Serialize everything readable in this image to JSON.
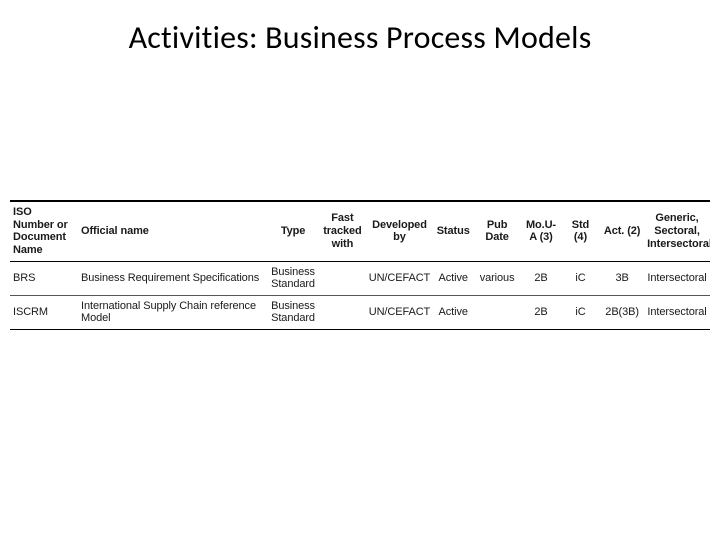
{
  "title": "Activities: Business Process Models",
  "table": {
    "columns": [
      {
        "key": "iso",
        "label": "ISO Number or Document Name",
        "class": "col-iso",
        "align": "left"
      },
      {
        "key": "name",
        "label": "Official name",
        "class": "col-name",
        "align": "left"
      },
      {
        "key": "type",
        "label": "Type",
        "class": "col-type",
        "align": "center"
      },
      {
        "key": "fast",
        "label": "Fast tracked with",
        "class": "col-fast",
        "align": "center"
      },
      {
        "key": "dev",
        "label": "Developed by",
        "class": "col-dev",
        "align": "center"
      },
      {
        "key": "status",
        "label": "Status",
        "class": "col-status",
        "align": "center"
      },
      {
        "key": "pub",
        "label": "Pub Date",
        "class": "col-pub",
        "align": "center"
      },
      {
        "key": "mou",
        "label": "Mo.U-A (3)",
        "class": "col-mou",
        "align": "center"
      },
      {
        "key": "std",
        "label": "Std (4)",
        "class": "col-std",
        "align": "center"
      },
      {
        "key": "act",
        "label": "Act. (2)",
        "class": "col-act",
        "align": "center"
      },
      {
        "key": "gen",
        "label": "Generic, Sectoral, Intersectoral",
        "class": "col-gen",
        "align": "center"
      }
    ],
    "rows": [
      {
        "iso": "BRS",
        "name": "Business Requirement Specifications",
        "type": "Business Standard",
        "fast": "",
        "dev": "UN/CEFACT",
        "status": "Active",
        "pub": "various",
        "mou": "2B",
        "std": "iC",
        "act": "3B",
        "gen": "Intersectoral"
      },
      {
        "iso": "ISCRM",
        "name": "International Supply Chain reference Model",
        "type": "Business Standard",
        "fast": "",
        "dev": "UN/CEFACT",
        "status": "Active",
        "pub": "",
        "mou": "2B",
        "std": "iC",
        "act": "2B(3B)",
        "gen": "Intersectoral"
      }
    ],
    "style": {
      "header_border_top": "#000000",
      "header_border_bottom": "#000000",
      "row_border": "#555555",
      "text_color": "#1a1a1a",
      "header_font_size_pt": 8,
      "body_font_size_pt": 8,
      "background": "#ffffff"
    }
  }
}
